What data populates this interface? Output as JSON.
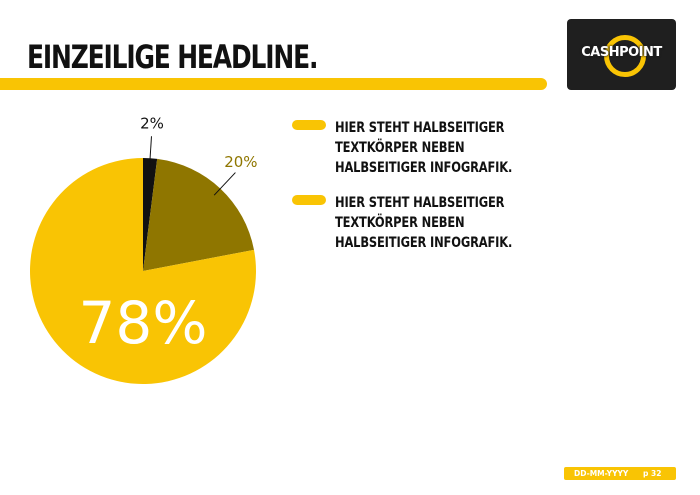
{
  "header": {
    "title": "EINZEILIGE HEADLINE."
  },
  "logo": {
    "text": "CASHPOINT"
  },
  "chart_data": {
    "type": "pie",
    "slices": [
      {
        "label": "2%",
        "value": 2,
        "color": "#111111"
      },
      {
        "label": "20%",
        "value": 20,
        "color": "#8f7600"
      },
      {
        "label": "78%",
        "value": 78,
        "color": "#f9c404"
      }
    ],
    "start": "top, clockwise"
  },
  "legend": {
    "items": [
      {
        "text": "HIER STEHT HALBSEITIGER TEXTKÖRPER NEBEN HALBSEITIGER INFOGRAFIK.",
        "color": "#f9c404"
      },
      {
        "text": "HIER STEHT HALBSEITIGER TEXTKÖRPER NEBEN HALBSEITIGER INFOGRAFIK.",
        "color": "#f9c404"
      }
    ]
  },
  "footer": {
    "date": "DD-MM-YYYY",
    "page": "p 32"
  }
}
